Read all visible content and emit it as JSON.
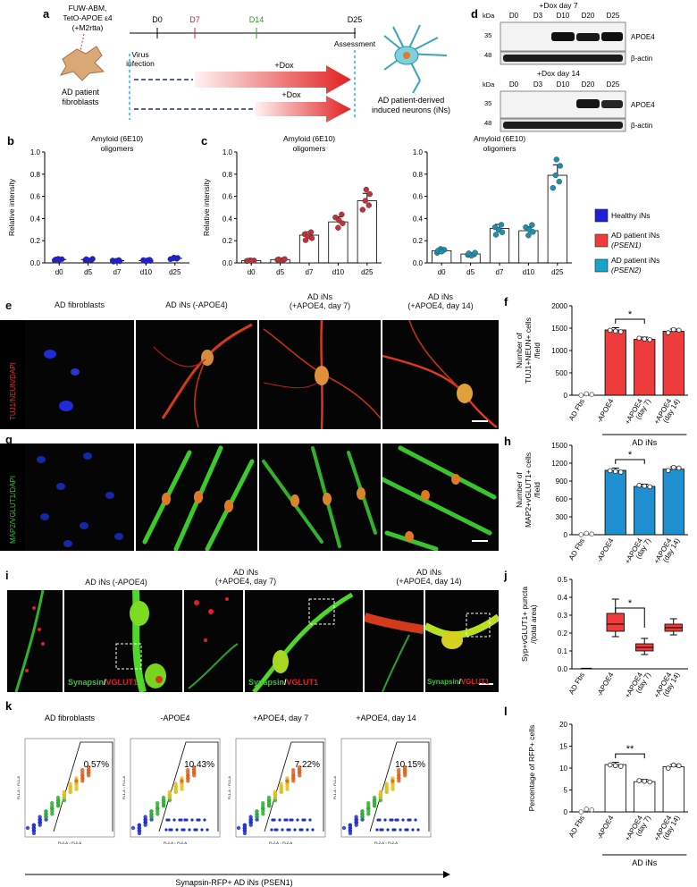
{
  "panel_a": {
    "letter": "a",
    "construct": [
      "FUW-ABM,",
      "TetO-APOE ε4",
      "(+M2rtta)"
    ],
    "source_label": [
      "AD patient",
      "fibroblasts"
    ],
    "timepoints": [
      "D0",
      "D7",
      "D14",
      "D25"
    ],
    "virus_label": [
      "Virus",
      "infection"
    ],
    "assessment": "Assessment",
    "dox_label": "+Dox",
    "result_label": [
      "AD patient-derived",
      "induced neurons (iNs)"
    ]
  },
  "panel_d": {
    "letter": "d",
    "blots": [
      {
        "title": "+Dox day 7",
        "lanes": [
          "D0",
          "D3",
          "D10",
          "D20",
          "D25"
        ],
        "kda": [
          "35",
          "48"
        ],
        "rows": [
          "APOE4",
          "β-actin"
        ],
        "kda_label": "kDa"
      },
      {
        "title": "+Dox day 14",
        "lanes": [
          "D0",
          "D3",
          "D10",
          "D20",
          "D25"
        ],
        "kda": [
          "35",
          "48"
        ],
        "rows": [
          "APOE4",
          "β-actin"
        ],
        "kda_label": "kDa"
      }
    ]
  },
  "legend": {
    "items": [
      {
        "label": [
          "Healthy iNs"
        ],
        "color": "#1f1fd6"
      },
      {
        "label": [
          "AD patient iNs",
          "(PSEN1)"
        ],
        "color": "#ee3b3b"
      },
      {
        "label": [
          "AD patient iNs",
          "(PSEN2)"
        ],
        "color": "#1aa3c9"
      }
    ]
  },
  "chart_data": [
    {
      "id": "b",
      "type": "bar",
      "title": [
        "Amyloid (6E10)",
        "oligomers"
      ],
      "ylabel": "Relative intensity",
      "categories": [
        "d0",
        "d5",
        "d7",
        "d10",
        "d25"
      ],
      "values": [
        0.03,
        0.03,
        0.02,
        0.02,
        0.04
      ],
      "ylim": [
        0,
        1.0
      ],
      "yticks": [
        "0.0",
        "0.2",
        "0.4",
        "0.6",
        "0.8",
        "1.0"
      ],
      "color": "#1f1fd6"
    },
    {
      "id": "c1",
      "type": "bar",
      "title": [
        "Amyloid (6E10)",
        "oligomers"
      ],
      "ylabel": "Relative intensity",
      "categories": [
        "d0",
        "d5",
        "d7",
        "d10",
        "d25"
      ],
      "values": [
        0.02,
        0.03,
        0.25,
        0.37,
        0.56
      ],
      "ylim": [
        0,
        1.0
      ],
      "yticks": [
        "0.0",
        "0.2",
        "0.4",
        "0.6",
        "0.8",
        "1.0"
      ],
      "color": "#c2303a"
    },
    {
      "id": "c2",
      "type": "bar",
      "title": [
        "Amyloid (6E10)",
        "oligomers"
      ],
      "ylabel": "Relative intensity",
      "categories": [
        "d0",
        "d5",
        "d7",
        "d10",
        "d25"
      ],
      "values": [
        0.11,
        0.08,
        0.31,
        0.29,
        0.79
      ],
      "ylim": [
        0,
        1.0
      ],
      "yticks": [
        "0.0",
        "0.2",
        "0.4",
        "0.6",
        "0.8",
        "1.0"
      ],
      "color": "#1f8fae"
    },
    {
      "id": "f",
      "type": "bar",
      "ylabel": [
        "Number of",
        "TUJ1+NEUN+ cells",
        "/field"
      ],
      "categories": [
        "AD Fbs",
        "-APOE4",
        "+APOE4 (day 7)",
        "+APOE4 (day 14)"
      ],
      "values": [
        0,
        1460,
        1250,
        1430
      ],
      "ylim": [
        0,
        2000
      ],
      "yticks": [
        "0",
        "500",
        "1000",
        "1500",
        "2000"
      ],
      "group": "AD iNs",
      "sig": "*",
      "color": "#ee3b3b"
    },
    {
      "id": "h",
      "type": "bar",
      "ylabel": [
        "Number of",
        "MAP2+vGLUT1+ cells",
        "/field"
      ],
      "categories": [
        "AD Fbs",
        "-APOE4",
        "+APOE4 (day 7)",
        "+APOE4 (day 14)"
      ],
      "values": [
        0,
        1080,
        810,
        1100
      ],
      "ylim": [
        0,
        1500
      ],
      "yticks": [
        "0",
        "300",
        "600",
        "900",
        "1200",
        "1500"
      ],
      "group": "AD iNs",
      "sig": "*",
      "color": "#1f8fcf"
    },
    {
      "id": "j",
      "type": "box",
      "ylabel": [
        "Syp+vGLUT1+ puncta",
        "/(total area)"
      ],
      "categories": [
        "AD Fbs",
        "-APOE4",
        "+APOE4 (day 7)",
        "+APOE4 (day 14)"
      ],
      "ylim": [
        0,
        0.5
      ],
      "yticks": [
        "0.0",
        "0.1",
        "0.2",
        "0.3",
        "0.4",
        "0.5"
      ],
      "group": "AD iNs",
      "sig": "*",
      "color": "#ee3b3b"
    },
    {
      "id": "l",
      "type": "bar",
      "ylabel": "Percentage of RFP+ cells",
      "categories": [
        "AD Fbs",
        "-APOE4",
        "+APOE4 (day 7)",
        "+APOE4 (day 14)"
      ],
      "values": [
        0.3,
        10.8,
        6.9,
        10.3
      ],
      "ylim": [
        0,
        20
      ],
      "yticks": [
        "0",
        "5",
        "10",
        "15",
        "20"
      ],
      "group": "AD iNs",
      "sig": "**",
      "color": "#ffffff"
    }
  ],
  "panel_e": {
    "letter": "e",
    "columns": [
      "AD fibroblasts",
      "AD iNs (-APOE4)",
      "AD iNs\n(+APOE4,  day 7)",
      "AD iNs\n(+APOE4,  day 14)"
    ],
    "stain": "TUJ1/NEUN/DAPI"
  },
  "panel_g": {
    "letter": "g",
    "stain": "MAP2/VGLUT1/DAPI"
  },
  "panel_i": {
    "letter": "i",
    "columns": [
      "AD iNs (-APOE4)",
      "AD iNs\n(+APOE4,  day 7)",
      "AD iNs\n(+APOE4,  day 14)"
    ],
    "stain_a": "Synapsin",
    "stain_b": "VGLUT1"
  },
  "panel_k": {
    "letter": "k",
    "plots": [
      {
        "title": "AD fibroblasts",
        "pct": "0.57%"
      },
      {
        "title": "-APOE4",
        "pct": "10.43%"
      },
      {
        "title": "+APOE4, day 7",
        "pct": "7.22%"
      },
      {
        "title": "+APOE4, day 14",
        "pct": "10.15%"
      }
    ],
    "axis_x": "FL2-A :: FL2-A",
    "axis_y": "FL1-A :: FL1-A",
    "footer": "Synapsin-RFP+ AD iNs (PSEN1)"
  },
  "letters": {
    "b": "b",
    "c": "c",
    "f": "f",
    "h": "h",
    "j": "j",
    "l": "l"
  }
}
